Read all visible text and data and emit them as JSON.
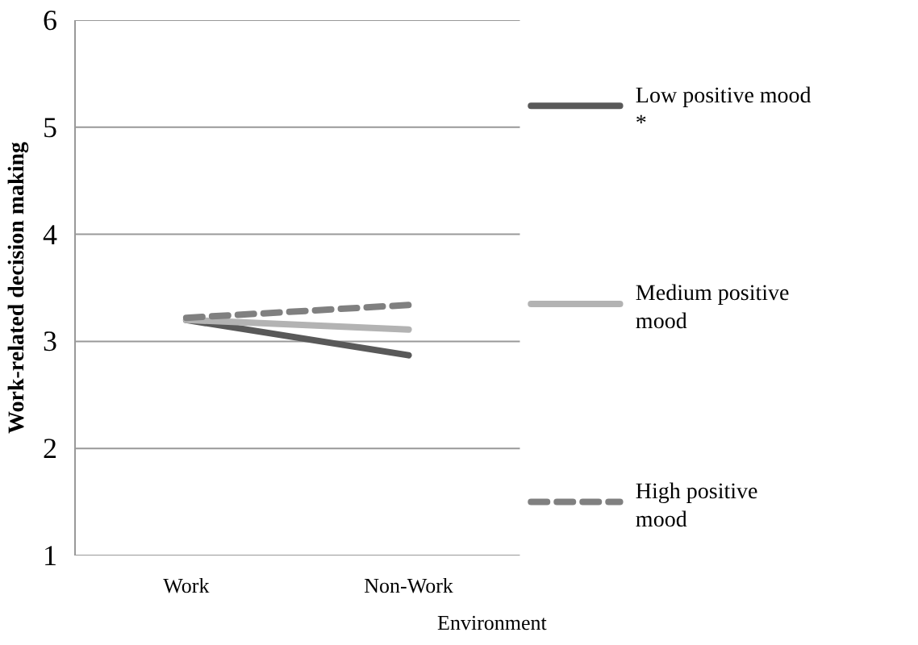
{
  "chart_data": {
    "type": "line",
    "xlabel": "Environment",
    "ylabel": "Work-related decision making",
    "categories": [
      "Work",
      "Non-Work"
    ],
    "series": [
      {
        "name": "Low positive mood *",
        "color": "#595959",
        "values": [
          3.2,
          2.87
        ],
        "line_style": "solid"
      },
      {
        "name": "Medium positive mood",
        "color": "#b3b3b3",
        "values": [
          3.2,
          3.11
        ],
        "line_style": "solid"
      },
      {
        "name": "High positive mood",
        "color": "#808080",
        "values": [
          3.22,
          3.34
        ],
        "line_style": "dashed"
      }
    ],
    "ylim": [
      1,
      6
    ],
    "yticks": [
      1,
      2,
      3,
      4,
      5,
      6
    ],
    "grid": "y",
    "legend": "right",
    "marker": "none"
  }
}
